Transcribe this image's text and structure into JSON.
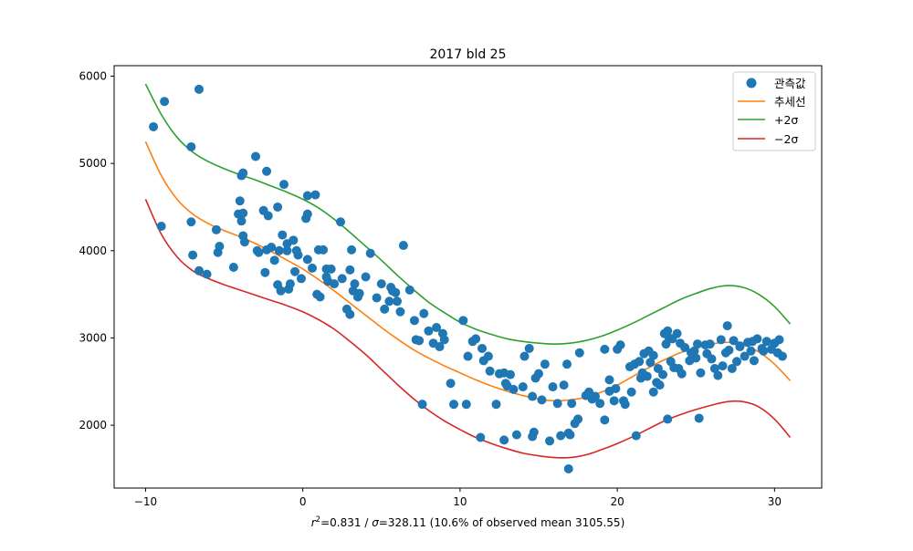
{
  "chart_data": {
    "type": "scatter",
    "title": "2017 bld 25",
    "xlabel_parts": {
      "r_symbol": "r",
      "r_exp": "2",
      "r_value": "=0.831 / ",
      "sigma_symbol": "σ",
      "rest": "=328.11 (10.6% of observed mean 3105.55)"
    },
    "ylabel": "",
    "xlim": [
      -12,
      33
    ],
    "ylim": [
      1280,
      6120
    ],
    "xticks": [
      -10,
      0,
      10,
      20,
      30
    ],
    "yticks": [
      2000,
      3000,
      4000,
      5000,
      6000
    ],
    "grid": false,
    "legend_position": "upper right",
    "legend": {
      "observed": "관측값",
      "trend": "추세선",
      "plus2": "+2σ",
      "minus2": "−2σ"
    },
    "colors": {
      "observed": "#1f77b4",
      "trend": "#ff7f0e",
      "plus2": "#2ca02c",
      "minus2": "#d62728"
    },
    "trend_line": {
      "name": "추세선",
      "x": [
        -10,
        -9,
        -8,
        -7,
        -6,
        -5,
        -4,
        -3,
        -2,
        -1,
        0,
        1,
        2,
        3,
        4,
        5,
        6,
        7,
        8,
        9,
        10,
        11,
        12,
        13,
        14,
        15,
        16,
        17,
        18,
        19,
        20,
        21,
        22,
        23,
        24,
        25,
        26,
        27,
        28,
        29,
        30,
        31
      ],
      "y": [
        5250,
        4860,
        4590,
        4420,
        4310,
        4230,
        4160,
        4080,
        3990,
        3890,
        3790,
        3670,
        3540,
        3400,
        3260,
        3120,
        2990,
        2870,
        2770,
        2680,
        2600,
        2520,
        2450,
        2390,
        2340,
        2300,
        2280,
        2290,
        2320,
        2380,
        2460,
        2560,
        2660,
        2750,
        2830,
        2890,
        2930,
        2950,
        2920,
        2840,
        2700,
        2510
      ]
    },
    "plus2_line": {
      "name": "+2σ",
      "x": [
        -10,
        -9,
        -8,
        -7,
        -6,
        -5,
        -4,
        -3,
        -2,
        -1,
        0,
        1,
        2,
        3,
        4,
        5,
        6,
        7,
        8,
        9,
        10,
        11,
        12,
        13,
        14,
        15,
        16,
        17,
        18,
        19,
        20,
        21,
        22,
        23,
        24,
        25,
        26,
        27,
        28,
        29,
        30,
        31
      ],
      "y": [
        5910,
        5560,
        5300,
        5130,
        5020,
        4940,
        4870,
        4810,
        4740,
        4670,
        4590,
        4490,
        4360,
        4210,
        4050,
        3890,
        3720,
        3560,
        3410,
        3290,
        3180,
        3100,
        3040,
        2990,
        2960,
        2940,
        2930,
        2940,
        2970,
        3020,
        3090,
        3170,
        3260,
        3350,
        3440,
        3510,
        3570,
        3600,
        3580,
        3500,
        3360,
        3160
      ]
    },
    "minus2_line": {
      "name": "−2σ",
      "x": [
        -10,
        -9,
        -8,
        -7,
        -6,
        -5,
        -4,
        -3,
        -2,
        -1,
        0,
        1,
        2,
        3,
        4,
        5,
        6,
        7,
        8,
        9,
        10,
        11,
        12,
        13,
        14,
        15,
        16,
        17,
        18,
        19,
        20,
        21,
        22,
        23,
        24,
        25,
        26,
        27,
        28,
        29,
        30,
        31
      ],
      "y": [
        4590,
        4190,
        3930,
        3770,
        3680,
        3610,
        3550,
        3490,
        3430,
        3370,
        3300,
        3210,
        3100,
        2960,
        2810,
        2640,
        2470,
        2310,
        2170,
        2050,
        1950,
        1860,
        1790,
        1730,
        1680,
        1650,
        1630,
        1630,
        1660,
        1720,
        1790,
        1870,
        1960,
        2050,
        2120,
        2180,
        2230,
        2270,
        2270,
        2210,
        2070,
        1860
      ]
    },
    "observed": {
      "name": "관측값",
      "points": [
        [
          -9.5,
          5420
        ],
        [
          -9.0,
          4280
        ],
        [
          -8.8,
          5710
        ],
        [
          -7.1,
          4330
        ],
        [
          -7.1,
          5190
        ],
        [
          -7.0,
          3950
        ],
        [
          -6.6,
          5850
        ],
        [
          -6.6,
          3770
        ],
        [
          -6.1,
          3730
        ],
        [
          -5.5,
          4240
        ],
        [
          -5.4,
          3980
        ],
        [
          -5.3,
          4050
        ],
        [
          -4.4,
          3810
        ],
        [
          -4.1,
          4420
        ],
        [
          -4.0,
          4570
        ],
        [
          -3.9,
          4860
        ],
        [
          -3.8,
          4890
        ],
        [
          -3.8,
          4430
        ],
        [
          -3.9,
          4340
        ],
        [
          -3.8,
          4170
        ],
        [
          -3.7,
          4100
        ],
        [
          -3.0,
          5080
        ],
        [
          -2.8,
          3980
        ],
        [
          -2.5,
          4460
        ],
        [
          -2.4,
          3750
        ],
        [
          -2.3,
          4910
        ],
        [
          -2.2,
          4400
        ],
        [
          -2.3,
          4010
        ],
        [
          -2.0,
          4040
        ],
        [
          -1.8,
          3890
        ],
        [
          -1.6,
          4500
        ],
        [
          -1.6,
          3610
        ],
        [
          -1.5,
          4000
        ],
        [
          -1.3,
          4180
        ],
        [
          -1.2,
          4760
        ],
        [
          -1.0,
          4080
        ],
        [
          -1.0,
          4000
        ],
        [
          -0.9,
          3560
        ],
        [
          -0.8,
          3620
        ],
        [
          -0.5,
          3760
        ],
        [
          -0.6,
          4120
        ],
        [
          -0.4,
          4000
        ],
        [
          -0.3,
          3950
        ],
        [
          -0.1,
          3680
        ],
        [
          0.2,
          4370
        ],
        [
          0.3,
          4420
        ],
        [
          0.3,
          3900
        ],
        [
          0.3,
          4630
        ],
        [
          0.8,
          4640
        ],
        [
          0.9,
          3500
        ],
        [
          1.0,
          4010
        ],
        [
          1.1,
          3470
        ],
        [
          1.3,
          4010
        ],
        [
          1.5,
          3790
        ],
        [
          1.5,
          3700
        ],
        [
          1.6,
          3650
        ],
        [
          1.8,
          3790
        ],
        [
          2.0,
          3620
        ],
        [
          2.4,
          4330
        ],
        [
          2.8,
          3330
        ],
        [
          3.0,
          3780
        ],
        [
          3.0,
          3270
        ],
        [
          3.2,
          3540
        ],
        [
          3.1,
          4010
        ],
        [
          3.3,
          3620
        ],
        [
          3.5,
          3470
        ],
        [
          3.6,
          3510
        ],
        [
          4.3,
          3970
        ],
        [
          4.7,
          3460
        ],
        [
          5.0,
          3620
        ],
        [
          5.5,
          3420
        ],
        [
          5.6,
          3580
        ],
        [
          5.7,
          3540
        ],
        [
          5.9,
          3520
        ],
        [
          6.2,
          3300
        ],
        [
          6.4,
          4060
        ],
        [
          6.8,
          3550
        ],
        [
          7.1,
          3200
        ],
        [
          7.4,
          2970
        ],
        [
          7.7,
          3280
        ],
        [
          7.6,
          2240
        ],
        [
          8.0,
          3080
        ],
        [
          8.5,
          3120
        ],
        [
          8.7,
          2900
        ],
        [
          8.9,
          3050
        ],
        [
          9.4,
          2480
        ],
        [
          9.6,
          2240
        ],
        [
          10.2,
          3200
        ],
        [
          10.4,
          2240
        ],
        [
          10.5,
          2790
        ],
        [
          10.8,
          2960
        ],
        [
          11.0,
          2990
        ],
        [
          11.4,
          2880
        ],
        [
          11.3,
          1860
        ],
        [
          11.5,
          2740
        ],
        [
          11.8,
          2790
        ],
        [
          12.3,
          2240
        ],
        [
          12.5,
          2590
        ],
        [
          12.8,
          2600
        ],
        [
          12.8,
          1830
        ],
        [
          12.9,
          2480
        ],
        [
          13.2,
          2580
        ],
        [
          13.4,
          2410
        ],
        [
          13.6,
          1890
        ],
        [
          14.0,
          2440
        ],
        [
          14.1,
          2790
        ],
        [
          14.4,
          2880
        ],
        [
          14.6,
          2330
        ],
        [
          14.6,
          1870
        ],
        [
          14.7,
          1920
        ],
        [
          14.8,
          2540
        ],
        [
          15.0,
          2590
        ],
        [
          15.4,
          2700
        ],
        [
          15.7,
          1820
        ],
        [
          15.9,
          2440
        ],
        [
          16.2,
          2250
        ],
        [
          16.4,
          1880
        ],
        [
          16.6,
          2460
        ],
        [
          16.8,
          2700
        ],
        [
          16.9,
          1910
        ],
        [
          16.9,
          1500
        ],
        [
          17.0,
          1890
        ],
        [
          17.1,
          2250
        ],
        [
          17.3,
          2020
        ],
        [
          17.5,
          2070
        ],
        [
          17.6,
          2830
        ],
        [
          18.0,
          2340
        ],
        [
          18.2,
          2380
        ],
        [
          18.6,
          2330
        ],
        [
          18.9,
          2250
        ],
        [
          19.2,
          2060
        ],
        [
          19.2,
          2870
        ],
        [
          19.5,
          2390
        ],
        [
          19.5,
          2520
        ],
        [
          19.8,
          2280
        ],
        [
          20.0,
          2870
        ],
        [
          20.2,
          2920
        ],
        [
          20.4,
          2280
        ],
        [
          20.5,
          2240
        ],
        [
          20.8,
          2670
        ],
        [
          20.9,
          2380
        ],
        [
          21.1,
          2700
        ],
        [
          21.2,
          1880
        ],
        [
          21.4,
          2730
        ],
        [
          21.5,
          2540
        ],
        [
          21.7,
          2820
        ],
        [
          21.9,
          2560
        ],
        [
          22.0,
          2850
        ],
        [
          22.1,
          2720
        ],
        [
          22.3,
          2380
        ],
        [
          22.3,
          2800
        ],
        [
          22.5,
          2490
        ],
        [
          22.7,
          2460
        ],
        [
          22.9,
          2580
        ],
        [
          23.0,
          3050
        ],
        [
          23.1,
          2930
        ],
        [
          23.2,
          3080
        ],
        [
          23.3,
          3000
        ],
        [
          23.5,
          2990
        ],
        [
          23.6,
          2660
        ],
        [
          23.8,
          3050
        ],
        [
          23.9,
          2650
        ],
        [
          24.1,
          2590
        ],
        [
          24.3,
          2890
        ],
        [
          24.6,
          2740
        ],
        [
          24.9,
          2850
        ],
        [
          25.0,
          2770
        ],
        [
          25.1,
          2930
        ],
        [
          25.3,
          2600
        ],
        [
          25.6,
          2920
        ],
        [
          25.7,
          2820
        ],
        [
          25.9,
          2930
        ],
        [
          26.2,
          2650
        ],
        [
          26.4,
          2570
        ],
        [
          26.7,
          2680
        ],
        [
          26.9,
          2830
        ],
        [
          27.0,
          3140
        ],
        [
          27.1,
          2860
        ],
        [
          27.3,
          2650
        ],
        [
          27.4,
          2970
        ],
        [
          27.6,
          2730
        ],
        [
          27.8,
          2910
        ],
        [
          28.1,
          2790
        ],
        [
          28.3,
          2950
        ],
        [
          28.5,
          2850
        ],
        [
          28.7,
          2740
        ],
        [
          28.9,
          2990
        ],
        [
          29.2,
          2880
        ],
        [
          29.5,
          2960
        ],
        [
          29.8,
          2870
        ],
        [
          30.0,
          2940
        ],
        [
          30.2,
          2830
        ],
        [
          30.3,
          2980
        ],
        [
          30.5,
          2790
        ],
        [
          -2.9,
          4000
        ],
        [
          -1.4,
          3540
        ],
        [
          0.6,
          3800
        ],
        [
          2.5,
          3680
        ],
        [
          4.0,
          3700
        ],
        [
          5.2,
          3330
        ],
        [
          6.0,
          3420
        ],
        [
          7.2,
          2980
        ],
        [
          8.3,
          2940
        ],
        [
          9.0,
          2980
        ],
        [
          11.9,
          2620
        ],
        [
          13.0,
          2450
        ],
        [
          15.2,
          2290
        ],
        [
          18.4,
          2300
        ],
        [
          19.9,
          2420
        ],
        [
          21.6,
          2600
        ],
        [
          22.6,
          2650
        ],
        [
          23.4,
          2730
        ],
        [
          24.0,
          2940
        ],
        [
          24.7,
          2830
        ],
        [
          25.2,
          2080
        ],
        [
          26.0,
          2760
        ],
        [
          26.6,
          2980
        ],
        [
          27.8,
          2900
        ],
        [
          28.6,
          2960
        ],
        [
          29.3,
          2850
        ],
        [
          23.2,
          2070
        ]
      ]
    }
  }
}
